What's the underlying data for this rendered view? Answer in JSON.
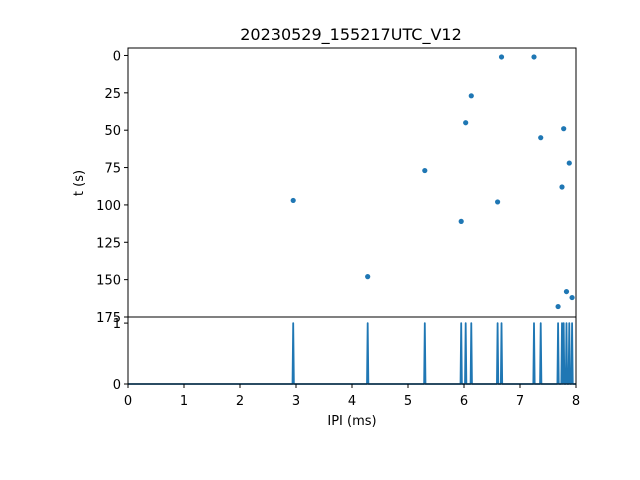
{
  "colors": {
    "series": "#1f77b4",
    "axes": "#000000",
    "background": "#ffffff"
  },
  "chart_data": [
    {
      "type": "scatter",
      "title": "20230529_155217UTC_V12",
      "xlabel": "",
      "ylabel": "t (s)",
      "xlim": [
        0,
        8
      ],
      "ylim": [
        175,
        -5
      ],
      "y_inverted": true,
      "grid": false,
      "yticks": [
        0,
        25,
        50,
        75,
        100,
        125,
        150,
        175
      ],
      "points": [
        {
          "x": 2.95,
          "y": 97
        },
        {
          "x": 4.28,
          "y": 148
        },
        {
          "x": 5.3,
          "y": 77
        },
        {
          "x": 5.95,
          "y": 111
        },
        {
          "x": 6.03,
          "y": 45
        },
        {
          "x": 6.13,
          "y": 27
        },
        {
          "x": 6.6,
          "y": 98
        },
        {
          "x": 6.67,
          "y": 1
        },
        {
          "x": 7.25,
          "y": 1
        },
        {
          "x": 7.37,
          "y": 55
        },
        {
          "x": 7.68,
          "y": 168
        },
        {
          "x": 7.75,
          "y": 88
        },
        {
          "x": 7.78,
          "y": 49
        },
        {
          "x": 7.83,
          "y": 158
        },
        {
          "x": 7.88,
          "y": 72
        },
        {
          "x": 7.93,
          "y": 162
        }
      ]
    },
    {
      "type": "line",
      "title": "",
      "xlabel": "IPI (ms)",
      "ylabel": "",
      "xlim": [
        0,
        8
      ],
      "ylim": [
        0,
        1.1
      ],
      "grid": false,
      "xticks": [
        0,
        1,
        2,
        3,
        4,
        5,
        6,
        7,
        8
      ],
      "yticks": [
        0,
        1
      ],
      "spikes": [
        2.95,
        4.28,
        5.3,
        5.95,
        6.03,
        6.13,
        6.6,
        6.67,
        7.25,
        7.37,
        7.68,
        7.75,
        7.78,
        7.83,
        7.88,
        7.93
      ],
      "spike_height": 1
    }
  ]
}
